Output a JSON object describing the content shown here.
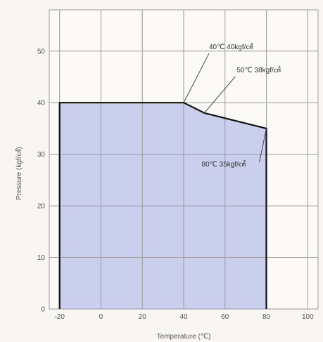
{
  "chart_data": {
    "type": "area",
    "title": "",
    "xlabel": "Temperature (℃)",
    "ylabel": "Pressure (kgf/㎠)",
    "xlim": [
      -25,
      105
    ],
    "ylim": [
      0,
      58
    ],
    "xticks": [
      -20,
      0,
      20,
      40,
      60,
      80,
      100
    ],
    "yticks": [
      0,
      10,
      20,
      30,
      40,
      50
    ],
    "xtick_labels": [
      "-20",
      "0",
      "20",
      "40",
      "60",
      "80",
      "100"
    ],
    "ytick_labels": [
      "0",
      "10",
      "20",
      "30",
      "40",
      "50"
    ],
    "grid": true,
    "series": [
      {
        "x": [
          -20,
          -20,
          40,
          50,
          80,
          80
        ],
        "y": [
          0,
          40,
          40,
          38,
          35,
          0
        ]
      }
    ],
    "annotations": [
      {
        "text": "40℃ 40kgf/㎠",
        "x": 40,
        "y": 40
      },
      {
        "text": "50℃ 38kgf/㎠",
        "x": 50,
        "y": 38
      },
      {
        "text": "80℃ 35kgf/㎠",
        "x": 80,
        "y": 35
      }
    ],
    "colors": {
      "fill": "#c9cfec",
      "outline": "#111111",
      "grid": "#9b9b9b",
      "leader": "#444444"
    }
  }
}
